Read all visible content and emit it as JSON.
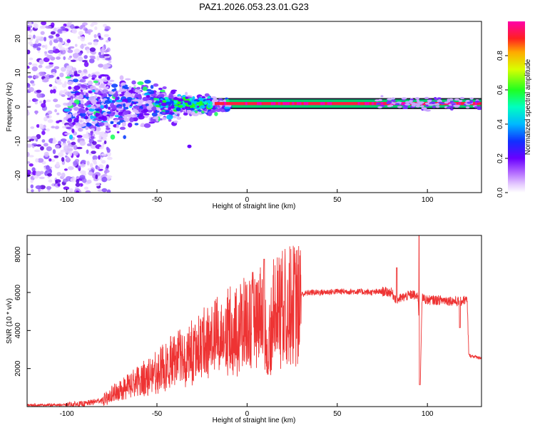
{
  "title": "PAZ1.2026.053.23.01.G23",
  "chart_data": [
    {
      "type": "heatmap",
      "title": "PAZ1.2026.053.23.01.G23",
      "xlabel": "Height of straight line (km)",
      "ylabel": "Frequency (Hz)",
      "xlim": [
        -122,
        130
      ],
      "ylim": [
        -25,
        25
      ],
      "x_ticks": [
        -100,
        -50,
        0,
        50,
        100
      ],
      "y_ticks": [
        -20,
        -10,
        0,
        10,
        20
      ],
      "colorbar": {
        "label": "Normalized spectral amplitude",
        "range": [
          0.0,
          1.0
        ],
        "ticks": [
          0.0,
          0.2,
          0.4,
          0.6,
          0.8
        ],
        "tick_labels": [
          "0.0",
          "0.2",
          "0.4",
          "0.6",
          "0.8"
        ],
        "colormap": "rainbow (white-violet-blue-cyan-green-yellow-red-magenta)"
      },
      "description_band": {
        "line_frequency_hz": 1,
        "line_start_km": -20,
        "line_end_km": 130,
        "scatter_region_km": [
          -122,
          -80
        ],
        "scatter_frequency_range_hz": [
          -25,
          25
        ]
      }
    },
    {
      "type": "line",
      "xlabel": "Height of straight line (km)",
      "ylabel": "SNR (10 * v/v)",
      "xlim": [
        -122,
        130
      ],
      "ylim": [
        0,
        9000
      ],
      "x_ticks": [
        -100,
        -50,
        0,
        50,
        100
      ],
      "y_ticks": [
        2000,
        4000,
        6000,
        8000
      ],
      "color": "#ee3333",
      "key_points": {
        "x": [
          -122,
          -100,
          -90,
          -80,
          -70,
          -60,
          -50,
          -40,
          -30,
          -20,
          -10,
          0,
          5,
          9,
          11,
          15,
          20,
          25,
          30,
          35,
          40,
          50,
          60,
          70,
          75,
          80,
          83,
          88,
          92,
          95,
          96,
          97,
          100,
          110,
          118,
          120,
          122,
          123,
          130
        ],
        "y": [
          80,
          90,
          150,
          350,
          900,
          1400,
          1900,
          2600,
          3100,
          3700,
          4200,
          4600,
          4900,
          5200,
          3000,
          5400,
          5600,
          5750,
          5900,
          6000,
          6000,
          6050,
          6050,
          6000,
          6050,
          6000,
          5600,
          5800,
          5900,
          5700,
          1100,
          5700,
          5600,
          5600,
          5500,
          5600,
          5600,
          2700,
          2550
        ]
      },
      "spikes": [
        {
          "x": 9.5,
          "y": 7750
        },
        {
          "x": 11.5,
          "y": 1700
        },
        {
          "x": 83,
          "y": 7300
        },
        {
          "x": 95.5,
          "y": 9000
        },
        {
          "x": 95.8,
          "y": 1150
        },
        {
          "x": 118,
          "y": 4150
        }
      ]
    }
  ]
}
